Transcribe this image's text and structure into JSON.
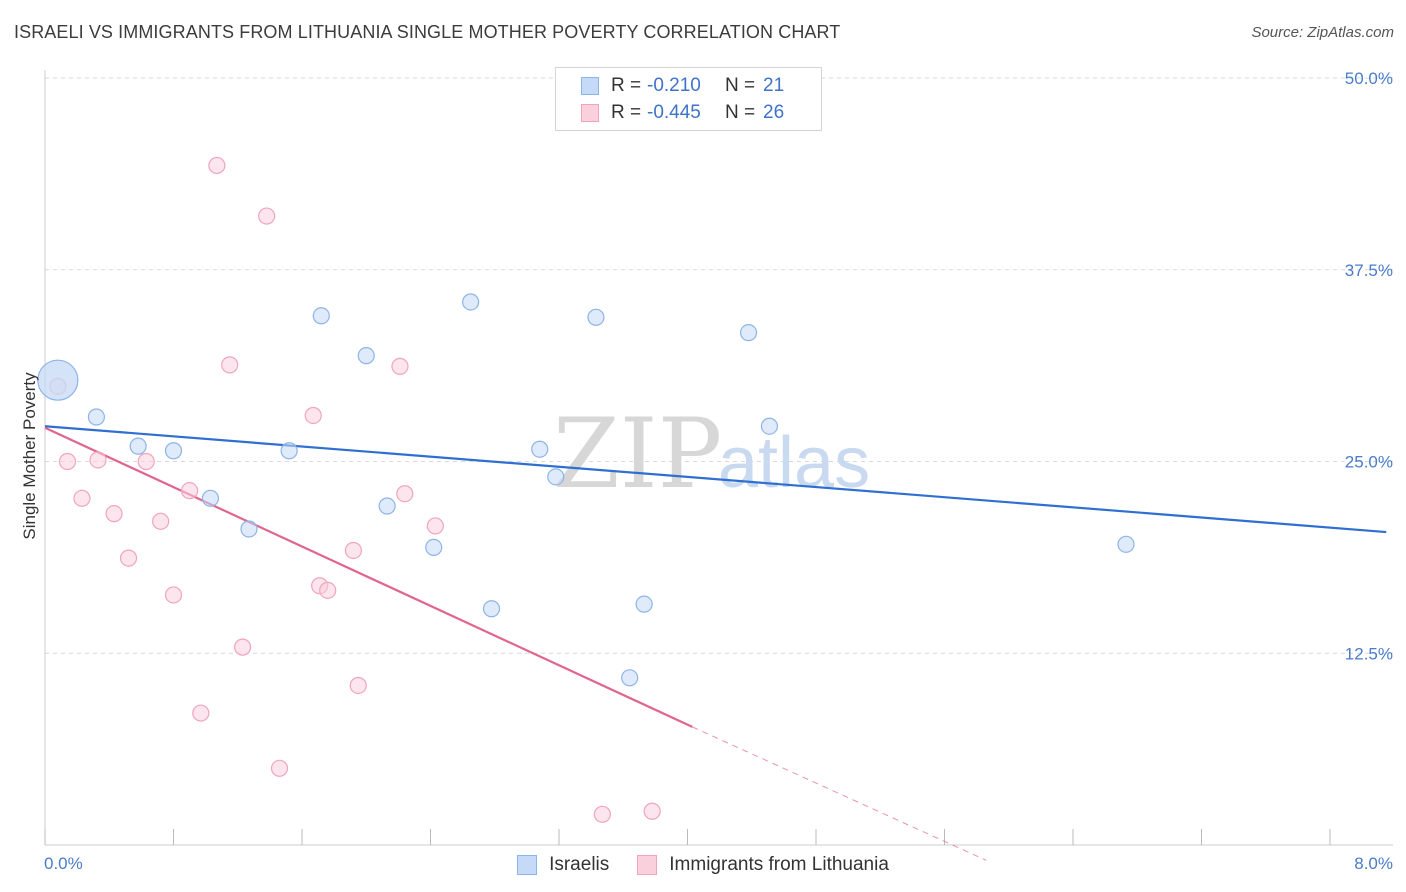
{
  "header": {
    "title": "ISRAELI VS IMMIGRANTS FROM LITHUANIA SINGLE MOTHER POVERTY CORRELATION CHART",
    "source": "Source: ZipAtlas.com"
  },
  "watermark": {
    "zip": "ZIP",
    "atlas": "atlas"
  },
  "legend": {
    "rows": [
      {
        "r_label": "R =",
        "r_value": "-0.210",
        "n_label": "N =",
        "n_value": "21"
      },
      {
        "r_label": "R =",
        "r_value": "-0.445",
        "n_label": "N =",
        "n_value": "26"
      }
    ]
  },
  "chart_data": {
    "type": "scatter",
    "title": "ISRAELI VS IMMIGRANTS FROM LITHUANIA SINGLE MOTHER POVERTY CORRELATION CHART",
    "xlabel": "",
    "ylabel": "Single Mother Poverty",
    "xlim": [
      0,
      8.4
    ],
    "ylim": [
      0,
      52
    ],
    "x_tick_labels": [
      "0.0%",
      "8.0%"
    ],
    "y_ticks": [
      12.5,
      25.0,
      37.5,
      50.0
    ],
    "y_tick_labels": [
      "12.5%",
      "25.0%",
      "37.5%",
      "50.0%"
    ],
    "grid": true,
    "legend_position": "top-center",
    "series": [
      {
        "name": "Israelis",
        "color": "#8db4e8",
        "fill": "#c5daf6",
        "line_color": "#2f6fd0",
        "points": [
          {
            "x": 0.08,
            "y": 30.3,
            "big": true
          },
          {
            "x": 0.32,
            "y": 27.9
          },
          {
            "x": 0.58,
            "y": 26.0
          },
          {
            "x": 0.8,
            "y": 25.7
          },
          {
            "x": 1.03,
            "y": 22.6
          },
          {
            "x": 1.27,
            "y": 20.6
          },
          {
            "x": 1.52,
            "y": 25.7
          },
          {
            "x": 1.72,
            "y": 34.5
          },
          {
            "x": 2.0,
            "y": 31.9
          },
          {
            "x": 2.13,
            "y": 22.1
          },
          {
            "x": 2.42,
            "y": 19.4
          },
          {
            "x": 2.65,
            "y": 35.4
          },
          {
            "x": 2.78,
            "y": 15.4
          },
          {
            "x": 3.08,
            "y": 25.8
          },
          {
            "x": 3.18,
            "y": 24.0
          },
          {
            "x": 3.43,
            "y": 34.4
          },
          {
            "x": 3.64,
            "y": 10.9
          },
          {
            "x": 3.73,
            "y": 15.7
          },
          {
            "x": 4.38,
            "y": 33.4
          },
          {
            "x": 4.51,
            "y": 27.3
          },
          {
            "x": 6.73,
            "y": 19.6
          }
        ],
        "trend": {
          "x0": 0.0,
          "y0": 27.3,
          "x1": 8.35,
          "y1": 20.4
        }
      },
      {
        "name": "Immigrants from Lithuania",
        "color": "#f0a5bc",
        "fill": "#f9d0dc",
        "line_color": "#e0658f",
        "points": [
          {
            "x": 0.08,
            "y": 29.9
          },
          {
            "x": 0.14,
            "y": 25.0
          },
          {
            "x": 0.23,
            "y": 22.6
          },
          {
            "x": 0.33,
            "y": 25.1
          },
          {
            "x": 0.43,
            "y": 21.6
          },
          {
            "x": 0.52,
            "y": 18.7
          },
          {
            "x": 0.63,
            "y": 25.0
          },
          {
            "x": 0.72,
            "y": 21.1
          },
          {
            "x": 0.8,
            "y": 16.3
          },
          {
            "x": 0.9,
            "y": 23.1
          },
          {
            "x": 0.97,
            "y": 8.6
          },
          {
            "x": 1.07,
            "y": 44.3
          },
          {
            "x": 1.15,
            "y": 31.3
          },
          {
            "x": 1.23,
            "y": 12.9
          },
          {
            "x": 1.38,
            "y": 41.0
          },
          {
            "x": 1.46,
            "y": 5.0
          },
          {
            "x": 1.67,
            "y": 28.0
          },
          {
            "x": 1.71,
            "y": 16.9
          },
          {
            "x": 1.76,
            "y": 16.6
          },
          {
            "x": 1.92,
            "y": 19.2
          },
          {
            "x": 1.95,
            "y": 10.4
          },
          {
            "x": 2.21,
            "y": 31.2
          },
          {
            "x": 2.24,
            "y": 22.9
          },
          {
            "x": 2.43,
            "y": 20.8
          },
          {
            "x": 3.47,
            "y": 2.0
          },
          {
            "x": 3.78,
            "y": 2.2
          }
        ],
        "trend": {
          "x0": 0.0,
          "y0": 27.2,
          "x1": 4.03,
          "y1": 7.7
        },
        "trend_dashed": {
          "x0": 4.03,
          "y0": 7.7,
          "x1": 5.86,
          "y1": -1.0
        }
      }
    ]
  }
}
